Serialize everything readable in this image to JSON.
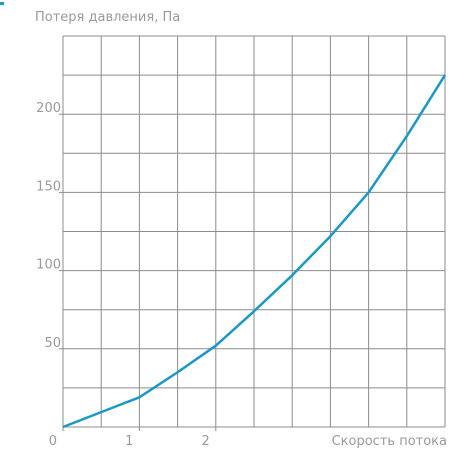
{
  "chart_data": {
    "type": "line",
    "ylabel": "Потеря давления, Па",
    "xlabel": "Скорость потока",
    "x": [
      0,
      1,
      1.5,
      2,
      2.5,
      3,
      3.5,
      4,
      4.5,
      5
    ],
    "series": [
      {
        "color": "#1b98c6",
        "values": [
          0,
          19,
          35,
          52,
          74,
          97,
          122,
          150,
          186,
          225
        ]
      }
    ],
    "xlim": [
      0,
      5
    ],
    "xticks": [
      0,
      1,
      2
    ],
    "ylim": [
      0,
      250
    ],
    "yticks": [
      50,
      100,
      150,
      200
    ],
    "xgrid": [
      0,
      0.5,
      1,
      1.5,
      2,
      2.5,
      3,
      3.5,
      4,
      4.5,
      5
    ],
    "ygrid": [
      0,
      25,
      50,
      75,
      100,
      125,
      150,
      175,
      200,
      225,
      250
    ],
    "grid": true
  }
}
